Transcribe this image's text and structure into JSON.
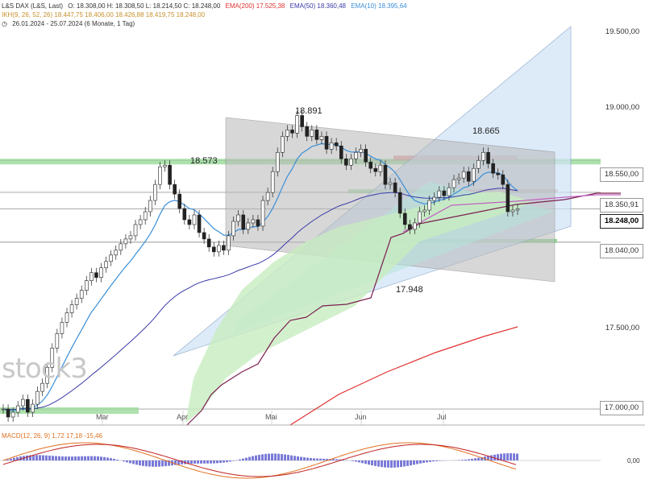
{
  "header": {
    "instrument": "L&S DAX (L&S, Last)",
    "ohlc": "O: 18.308,00  H: 18.308,50  L: 18.214,50  C: 18.248,00",
    "ema200": "EMA(200) 17.525,38",
    "ema50": "EMA(50) 18.360,48",
    "ema10": "EMA(10) 18.395,64",
    "ikh": "IKH(9, 26, 52, 26) 18.447,75  18.406,00  18.426,88  18.419,75  18.248,00",
    "range": "26.01.2024 - 25.07.2024  (6 Monate, 1 Tag)"
  },
  "macd_label": "MACD(12, 26, 9)  1,72  17,18  -15,46",
  "macd_zero": "0,00",
  "watermark": "stock3",
  "colors": {
    "ema200": "#e03030",
    "ema50": "#3a3aa8",
    "ema10": "#3a8fd8",
    "ikh": "#d8a030",
    "senkou": "#7a2050",
    "kijun": "#7a2050",
    "green_zone": "#9ad99a",
    "red_zone": "#e6a0a0",
    "blue_channel": "#cfe3f7",
    "gray_channel": "#b8b8b8",
    "teal_triangle": "#b5e3da"
  },
  "price_labels": {
    "p19500": "19.500,00",
    "p19000": "19.000,00",
    "p18550": "18.550,00",
    "p18350": "18.350,91",
    "p18248": "18.248,00",
    "p18040": "18.040,00",
    "p17500": "17.500,00",
    "p17000": "17.000,00"
  },
  "annotations": {
    "a18891": "18.891",
    "a18573": "18.573",
    "a18665": "18.665",
    "a17948": "17.948"
  },
  "chart_data": {
    "type": "candlestick",
    "x_axis": [
      "Mar",
      "Apr",
      "Mai",
      "Jun",
      "Jul"
    ],
    "y_ticks": [
      17000,
      17500,
      18000,
      18500,
      19000,
      19500
    ],
    "ylim": [
      16900,
      19550
    ],
    "levels": [
      {
        "value": 18550,
        "label": "18.550,00"
      },
      {
        "value": 18350.91,
        "label": "18.350,91"
      },
      {
        "value": 18248,
        "label": "18.248,00"
      },
      {
        "value": 18040,
        "label": "18.040,00"
      },
      {
        "value": 17000,
        "label": "17.000,00"
      }
    ],
    "series": [
      {
        "name": "EMA(200)",
        "last": 17525.38
      },
      {
        "name": "EMA(50)",
        "last": 18360.48
      },
      {
        "name": "EMA(10)",
        "last": 18395.64
      }
    ],
    "closes": [
      17000,
      16950,
      16980,
      17020,
      17060,
      16980,
      17030,
      17110,
      17160,
      17260,
      17380,
      17470,
      17540,
      17600,
      17650,
      17690,
      17740,
      17800,
      17850,
      17820,
      17880,
      17920,
      17960,
      17990,
      18030,
      18060,
      18080,
      18150,
      18180,
      18230,
      18300,
      18400,
      18510,
      18520,
      18400,
      18340,
      18250,
      18180,
      18150,
      18210,
      18100,
      18060,
      18010,
      17980,
      18020,
      17990,
      18080,
      18170,
      18210,
      18120,
      18160,
      18180,
      18140,
      18300,
      18350,
      18480,
      18600,
      18700,
      18740,
      18720,
      18830,
      18760,
      18700,
      18740,
      18680,
      18700,
      18620,
      18660,
      18640,
      18560,
      18520,
      18560,
      18600,
      18620,
      18540,
      18500,
      18480,
      18520,
      18400,
      18410,
      18350,
      18220,
      18150,
      18120,
      18160,
      18230,
      18240,
      18300,
      18320,
      18360,
      18330,
      18380,
      18430,
      18440,
      18480,
      18420,
      18500,
      18550,
      18600,
      18530,
      18470,
      18460,
      18400,
      18230,
      18240,
      18248
    ],
    "annotations": [
      {
        "label": "18.891",
        "value": 18891
      },
      {
        "label": "18.573",
        "value": 18573
      },
      {
        "label": "18.665",
        "value": 18665
      },
      {
        "label": "17.948",
        "value": 17948
      }
    ],
    "macd": {
      "macd": 1.72,
      "signal": 17.18,
      "hist": -15.46
    }
  }
}
